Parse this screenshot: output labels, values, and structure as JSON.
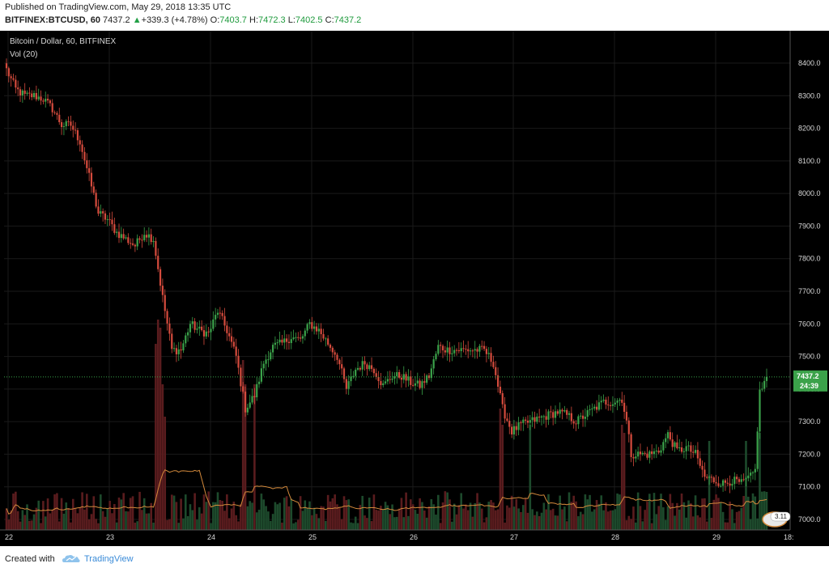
{
  "header": {
    "published": "Published on TradingView.com, May 29, 2018 13:35 UTC",
    "symbol": "BITFINEX:BTCUSD, 60",
    "last": "7437.2",
    "arrow": "▲",
    "change": "+339.3 (+4.78%)",
    "o_label": "O:",
    "o_val": "7403.7",
    "h_label": "H:",
    "h_val": "7472.3",
    "l_label": "L:",
    "l_val": "7402.5",
    "c_label": "C:",
    "c_val": "7437.2"
  },
  "legend": {
    "title": "Bitcoin / Dollar, 60, BITFINEX",
    "indicator": "Vol (20)"
  },
  "price_badge": {
    "price": "7437.2",
    "countdown": "24:39"
  },
  "volume_badge": "3.11",
  "footer": {
    "created": "Created with",
    "brand": "TradingView"
  },
  "colors": {
    "background": "#000000",
    "up": "#3ba24a",
    "down": "#d54b3d",
    "vol_up": "#1d4a2c",
    "vol_down": "#5a1c1e",
    "ma": "#d48a3c",
    "last_line": "#3ba24a"
  },
  "chart_data": {
    "type": "candlestick",
    "title": "Bitcoin / Dollar, 60, BITFINEX",
    "y_ticks": [
      "8400.0",
      "8300.0",
      "8200.0",
      "8100.0",
      "8000.0",
      "7900.0",
      "7800.0",
      "7700.0",
      "7600.0",
      "7500.0",
      "7400.0",
      "7300.0",
      "7200.0",
      "7100.0",
      "7000.0"
    ],
    "ylim": [
      6985,
      8420
    ],
    "x_ticks": [
      "22",
      "23",
      "24",
      "25",
      "26",
      "27",
      "28",
      "29",
      "18:"
    ],
    "last_price": 7437.2,
    "volume_ma_period": 20,
    "close_waypoints": [
      [
        0,
        8380
      ],
      [
        4,
        8320
      ],
      [
        8,
        8300
      ],
      [
        12,
        8300
      ],
      [
        16,
        8290
      ],
      [
        20,
        8260
      ],
      [
        24,
        8210
      ],
      [
        28,
        8210
      ],
      [
        32,
        8160
      ],
      [
        36,
        8050
      ],
      [
        40,
        7940
      ],
      [
        44,
        7920
      ],
      [
        48,
        7880
      ],
      [
        52,
        7860
      ],
      [
        56,
        7840
      ],
      [
        60,
        7880
      ],
      [
        64,
        7860
      ],
      [
        68,
        7680
      ],
      [
        72,
        7520
      ],
      [
        76,
        7520
      ],
      [
        80,
        7600
      ],
      [
        84,
        7580
      ],
      [
        88,
        7570
      ],
      [
        92,
        7640
      ],
      [
        96,
        7580
      ],
      [
        100,
        7500
      ],
      [
        104,
        7340
      ],
      [
        108,
        7380
      ],
      [
        112,
        7480
      ],
      [
        116,
        7530
      ],
      [
        120,
        7540
      ],
      [
        124,
        7560
      ],
      [
        128,
        7550
      ],
      [
        132,
        7600
      ],
      [
        136,
        7580
      ],
      [
        140,
        7540
      ],
      [
        144,
        7500
      ],
      [
        148,
        7400
      ],
      [
        152,
        7460
      ],
      [
        156,
        7480
      ],
      [
        160,
        7460
      ],
      [
        164,
        7410
      ],
      [
        168,
        7440
      ],
      [
        172,
        7440
      ],
      [
        176,
        7420
      ],
      [
        180,
        7410
      ],
      [
        184,
        7440
      ],
      [
        188,
        7530
      ],
      [
        192,
        7520
      ],
      [
        196,
        7520
      ],
      [
        200,
        7520
      ],
      [
        204,
        7520
      ],
      [
        208,
        7520
      ],
      [
        212,
        7480
      ],
      [
        216,
        7340
      ],
      [
        220,
        7270
      ],
      [
        224,
        7290
      ],
      [
        228,
        7300
      ],
      [
        232,
        7310
      ],
      [
        236,
        7320
      ],
      [
        240,
        7330
      ],
      [
        244,
        7320
      ],
      [
        248,
        7300
      ],
      [
        252,
        7320
      ],
      [
        256,
        7340
      ],
      [
        260,
        7360
      ],
      [
        264,
        7360
      ],
      [
        268,
        7370
      ],
      [
        270,
        7300
      ],
      [
        272,
        7200
      ],
      [
        276,
        7200
      ],
      [
        280,
        7200
      ],
      [
        284,
        7210
      ],
      [
        288,
        7260
      ],
      [
        292,
        7210
      ],
      [
        296,
        7220
      ],
      [
        300,
        7200
      ],
      [
        304,
        7130
      ],
      [
        308,
        7120
      ],
      [
        312,
        7110
      ],
      [
        316,
        7120
      ],
      [
        320,
        7110
      ],
      [
        324,
        7130
      ],
      [
        326,
        7150
      ],
      [
        327,
        7280
      ],
      [
        328,
        7390
      ],
      [
        330,
        7420
      ],
      [
        331,
        7437.2
      ]
    ],
    "volume_spikes": [
      [
        65,
        230
      ],
      [
        66,
        260
      ],
      [
        67,
        250
      ],
      [
        68,
        180
      ],
      [
        69,
        140
      ],
      [
        103,
        210
      ],
      [
        104,
        180
      ],
      [
        108,
        180
      ],
      [
        215,
        150
      ],
      [
        216,
        130
      ],
      [
        228,
        130
      ],
      [
        268,
        130
      ],
      [
        269,
        120
      ],
      [
        306,
        110
      ],
      [
        322,
        110
      ],
      [
        328,
        120
      ]
    ]
  }
}
